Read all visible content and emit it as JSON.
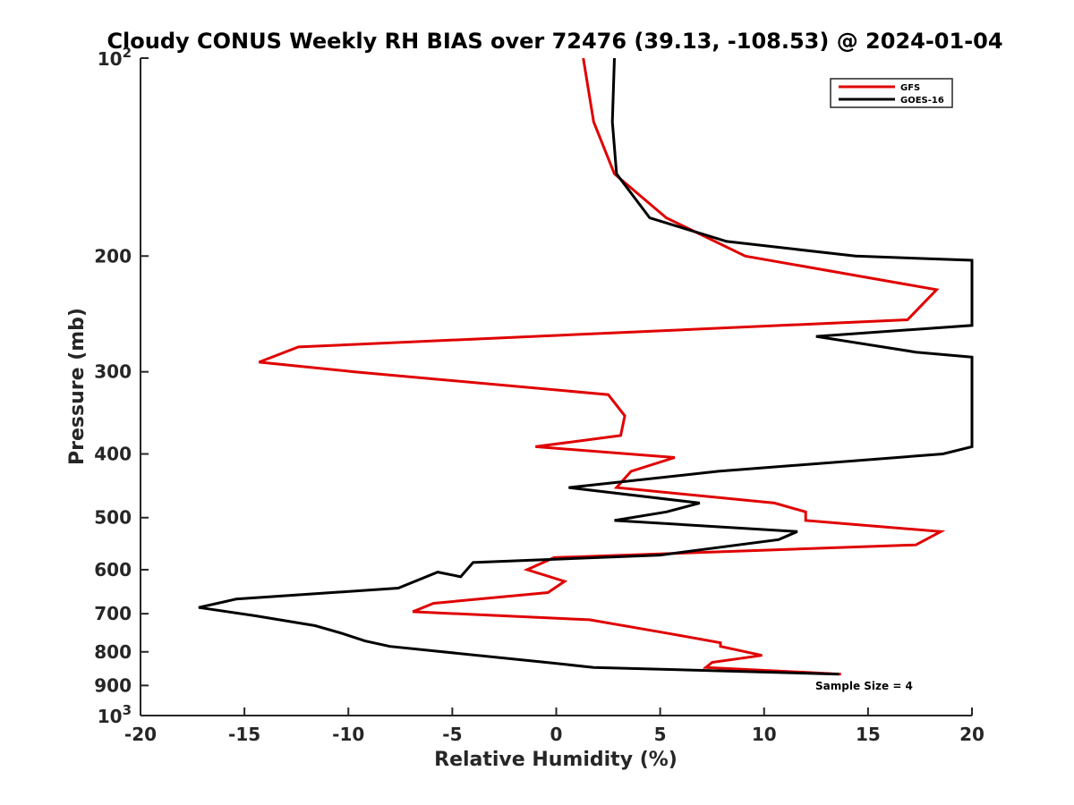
{
  "chart_data": {
    "type": "line",
    "title": "Cloudy CONUS Weekly RH BIAS over 72476 (39.13, -108.53) @ 2024-01-04",
    "xlabel": "Relative Humidity (%)",
    "ylabel": "Pressure (mb)",
    "xlim": [
      -20,
      20
    ],
    "ylim": [
      100,
      1000
    ],
    "y_scale": "log",
    "y_direction": "reversed",
    "grid": false,
    "legend_position": "top-right",
    "x_ticks": [
      "-20",
      "-15",
      "-10",
      "-5",
      "0",
      "5",
      "10",
      "15",
      "20"
    ],
    "y_ticks": [
      {
        "value": 200,
        "label": "200"
      },
      {
        "value": 300,
        "label": "300"
      },
      {
        "value": 400,
        "label": "400"
      },
      {
        "value": 500,
        "label": "500"
      },
      {
        "value": 600,
        "label": "600"
      },
      {
        "value": 700,
        "label": "700"
      },
      {
        "value": 800,
        "label": "800"
      },
      {
        "value": 900,
        "label": "900"
      }
    ],
    "y_tick_base": "10",
    "y_tick_top_exp": "2",
    "y_tick_bottom_exp": "3",
    "annotation": "Sample Size = 4",
    "series": [
      {
        "name": "GFS",
        "color": "#e00000",
        "points": [
          [
            1.3,
            100
          ],
          [
            1.8,
            125
          ],
          [
            2.8,
            150
          ],
          [
            5.3,
            175
          ],
          [
            9.1,
            200
          ],
          [
            18.3,
            225
          ],
          [
            16.9,
            250
          ],
          [
            -12.4,
            275
          ],
          [
            -14.3,
            290
          ],
          [
            -9.7,
            300
          ],
          [
            2.5,
            325
          ],
          [
            3.3,
            350
          ],
          [
            3.1,
            375
          ],
          [
            -1.0,
            390
          ],
          [
            5.7,
            405
          ],
          [
            3.6,
            425
          ],
          [
            2.9,
            450
          ],
          [
            10.5,
            475
          ],
          [
            12.0,
            490
          ],
          [
            12.0,
            505
          ],
          [
            18.5,
            525
          ],
          [
            17.3,
            550
          ],
          [
            -0.1,
            575
          ],
          [
            -1.4,
            600
          ],
          [
            0.4,
            625
          ],
          [
            -0.4,
            650
          ],
          [
            -5.9,
            675
          ],
          [
            -6.9,
            695
          ],
          [
            1.6,
            715
          ],
          [
            5.4,
            750
          ],
          [
            7.9,
            775
          ],
          [
            7.9,
            785
          ],
          [
            9.9,
            810
          ],
          [
            7.5,
            830
          ],
          [
            7.2,
            845
          ],
          [
            13.7,
            865
          ]
        ]
      },
      {
        "name": "GOES-16",
        "color": "#000000",
        "points": [
          [
            2.8,
            100
          ],
          [
            2.7,
            125
          ],
          [
            2.9,
            150
          ],
          [
            4.5,
            175
          ],
          [
            8.2,
            190
          ],
          [
            14.4,
            200
          ],
          [
            20.0,
            203
          ],
          [
            20.0,
            255
          ],
          [
            12.5,
            265
          ],
          [
            17.3,
            280
          ],
          [
            20.0,
            285
          ],
          [
            20.0,
            390
          ],
          [
            18.6,
            400
          ],
          [
            7.8,
            425
          ],
          [
            0.6,
            450
          ],
          [
            6.9,
            475
          ],
          [
            5.3,
            490
          ],
          [
            2.8,
            505
          ],
          [
            11.6,
            525
          ],
          [
            10.7,
            540
          ],
          [
            5.0,
            570
          ],
          [
            -4.0,
            585
          ],
          [
            -4.6,
            615
          ],
          [
            -5.7,
            605
          ],
          [
            -7.6,
            640
          ],
          [
            -15.4,
            665
          ],
          [
            -17.2,
            685
          ],
          [
            -14.5,
            705
          ],
          [
            -11.6,
            730
          ],
          [
            -10.3,
            750
          ],
          [
            -9.2,
            770
          ],
          [
            -8.0,
            785
          ],
          [
            -0.5,
            830
          ],
          [
            1.8,
            845
          ],
          [
            13.6,
            865
          ]
        ]
      }
    ]
  }
}
